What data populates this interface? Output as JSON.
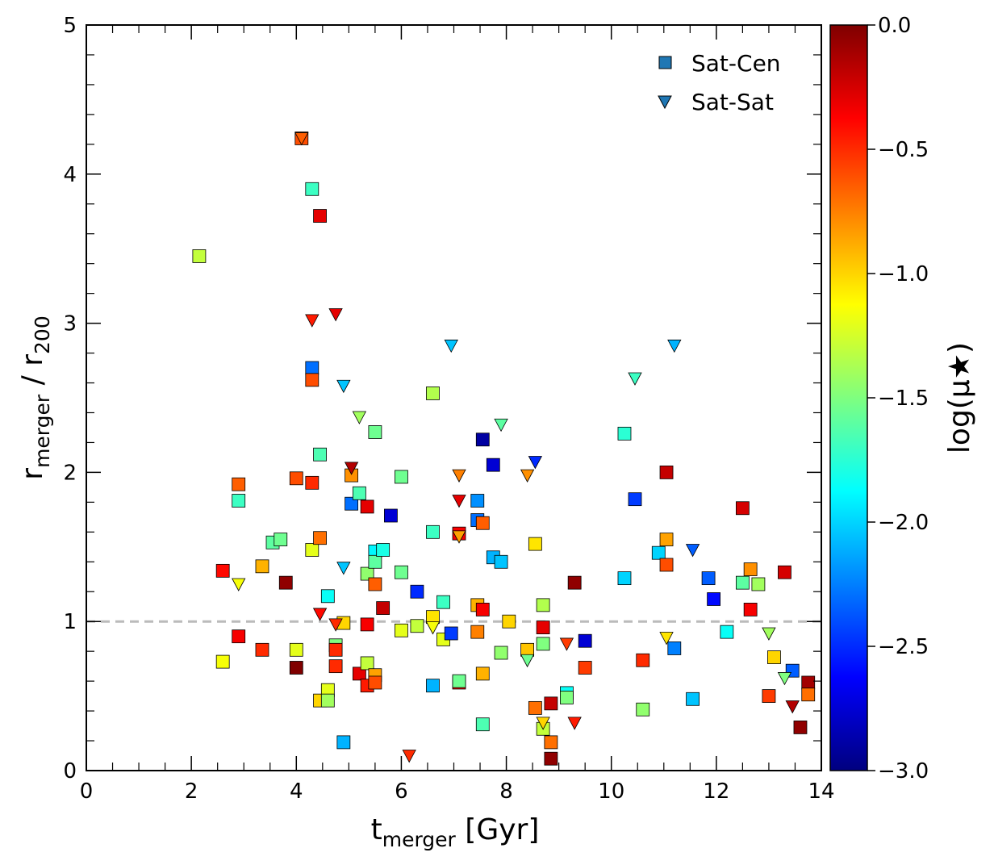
{
  "chart_data": {
    "type": "scatter",
    "title": "",
    "xlabel": {
      "main": "t",
      "sub": "merger",
      "unit": " [Gyr]"
    },
    "ylabel": {
      "main": "r",
      "sub": "merger",
      "mid": " / r",
      "sub2": "200"
    },
    "xlim": [
      0,
      14
    ],
    "ylim": [
      0,
      5
    ],
    "x_ticks": [
      0,
      2,
      4,
      6,
      8,
      10,
      12,
      14
    ],
    "x_tick_labels": [
      "0",
      "2",
      "4",
      "6",
      "8",
      "10",
      "12",
      "14"
    ],
    "y_ticks": [
      0,
      1,
      2,
      3,
      4,
      5
    ],
    "y_tick_labels": [
      "0",
      "1",
      "2",
      "3",
      "4",
      "5"
    ],
    "reference_line": {
      "y": 1.0,
      "style": "dashed",
      "color": "#bbbbbb"
    },
    "colorbar": {
      "label": "log(μ★)",
      "colormap": "jet",
      "range": [
        -3.0,
        0.0
      ],
      "ticks": [
        0.0,
        -0.5,
        -1.0,
        -1.5,
        -2.0,
        -2.5,
        -3.0
      ],
      "tick_labels": [
        "0.0",
        "−0.5",
        "−1.0",
        "−1.5",
        "−2.0",
        "−2.5",
        "−3.0"
      ]
    },
    "legend": {
      "position": "top-right",
      "entries": [
        {
          "label": "Sat-Cen",
          "marker": "square",
          "color": "#1f77b4"
        },
        {
          "label": "Sat-Sat",
          "marker": "triangle-down",
          "color": "#1f77b4"
        }
      ]
    },
    "series": [
      {
        "name": "Sat-Cen",
        "marker": "square",
        "points": [
          [
            2.15,
            3.45,
            -1.3
          ],
          [
            2.6,
            0.73,
            -1.15
          ],
          [
            2.6,
            1.34,
            -0.4
          ],
          [
            2.9,
            1.92,
            -0.65
          ],
          [
            2.9,
            1.81,
            -1.7
          ],
          [
            2.9,
            0.9,
            -0.35
          ],
          [
            3.35,
            1.37,
            -0.9
          ],
          [
            3.35,
            0.81,
            -0.5
          ],
          [
            3.55,
            1.53,
            -1.6
          ],
          [
            3.7,
            1.55,
            -1.55
          ],
          [
            3.8,
            1.26,
            -0.05
          ],
          [
            4.0,
            0.69,
            0.0
          ],
          [
            4.0,
            0.81,
            -1.2
          ],
          [
            4.0,
            1.96,
            -0.6
          ],
          [
            4.1,
            4.24,
            -0.6
          ],
          [
            4.3,
            3.9,
            -1.7
          ],
          [
            4.3,
            2.7,
            -2.3
          ],
          [
            4.3,
            2.62,
            -0.6
          ],
          [
            4.3,
            1.93,
            -0.5
          ],
          [
            4.3,
            1.48,
            -1.2
          ],
          [
            4.45,
            3.72,
            -0.3
          ],
          [
            4.45,
            2.12,
            -1.65
          ],
          [
            4.45,
            1.56,
            -0.7
          ],
          [
            4.45,
            0.47,
            -1.0
          ],
          [
            4.6,
            1.17,
            -1.85
          ],
          [
            4.6,
            0.54,
            -1.2
          ],
          [
            4.6,
            0.47,
            -1.4
          ],
          [
            4.75,
            0.84,
            -1.5
          ],
          [
            4.75,
            0.81,
            -0.5
          ],
          [
            4.75,
            0.7,
            -0.5
          ],
          [
            4.9,
            0.99,
            -1.0
          ],
          [
            4.9,
            0.19,
            -2.1
          ],
          [
            5.05,
            1.98,
            -0.8
          ],
          [
            5.05,
            1.79,
            -2.3
          ],
          [
            5.2,
            1.86,
            -1.65
          ],
          [
            5.2,
            0.65,
            -0.3
          ],
          [
            5.35,
            1.77,
            -0.3
          ],
          [
            5.35,
            1.32,
            -1.45
          ],
          [
            5.35,
            0.98,
            -0.35
          ],
          [
            5.35,
            0.72,
            -1.3
          ],
          [
            5.35,
            0.57,
            -0.45
          ],
          [
            5.5,
            2.27,
            -1.55
          ],
          [
            5.5,
            1.47,
            -1.9
          ],
          [
            5.5,
            1.4,
            -1.6
          ],
          [
            5.5,
            1.25,
            -0.65
          ],
          [
            5.5,
            0.64,
            -0.85
          ],
          [
            5.5,
            0.59,
            -0.6
          ],
          [
            5.65,
            1.48,
            -1.8
          ],
          [
            5.65,
            1.09,
            -0.2
          ],
          [
            5.8,
            1.71,
            -2.75
          ],
          [
            6.0,
            1.97,
            -1.55
          ],
          [
            6.0,
            1.33,
            -1.55
          ],
          [
            6.0,
            0.94,
            -1.2
          ],
          [
            6.3,
            1.2,
            -2.5
          ],
          [
            6.3,
            0.97,
            -1.3
          ],
          [
            6.6,
            2.53,
            -1.35
          ],
          [
            6.6,
            1.6,
            -1.7
          ],
          [
            6.6,
            1.03,
            -1.05
          ],
          [
            6.6,
            0.57,
            -2.1
          ],
          [
            6.8,
            1.13,
            -1.7
          ],
          [
            6.8,
            0.88,
            -1.2
          ],
          [
            6.95,
            0.92,
            -2.45
          ],
          [
            7.1,
            1.59,
            -0.35
          ],
          [
            7.1,
            0.59,
            -0.35
          ],
          [
            7.1,
            0.6,
            -1.55
          ],
          [
            7.45,
            1.81,
            -2.2
          ],
          [
            7.45,
            1.68,
            -2.3
          ],
          [
            7.45,
            1.11,
            -0.9
          ],
          [
            7.45,
            0.93,
            -0.75
          ],
          [
            7.55,
            2.22,
            -2.9
          ],
          [
            7.55,
            1.66,
            -0.65
          ],
          [
            7.55,
            1.08,
            -0.35
          ],
          [
            7.55,
            0.65,
            -0.9
          ],
          [
            7.55,
            0.31,
            -1.65
          ],
          [
            7.75,
            2.05,
            -2.75
          ],
          [
            7.75,
            1.43,
            -2.1
          ],
          [
            7.9,
            1.4,
            -2.05
          ],
          [
            7.9,
            0.79,
            -1.45
          ],
          [
            8.05,
            1.0,
            -1.0
          ],
          [
            8.4,
            0.81,
            -0.95
          ],
          [
            8.55,
            1.52,
            -1.05
          ],
          [
            8.55,
            0.42,
            -0.7
          ],
          [
            8.7,
            1.11,
            -1.35
          ],
          [
            8.7,
            0.96,
            -0.3
          ],
          [
            8.7,
            0.85,
            -1.5
          ],
          [
            8.7,
            0.28,
            -1.3
          ],
          [
            8.85,
            0.45,
            -0.2
          ],
          [
            8.85,
            0.19,
            -0.7
          ],
          [
            8.85,
            0.08,
            -0.05
          ],
          [
            9.15,
            0.52,
            -1.85
          ],
          [
            9.15,
            0.49,
            -1.5
          ],
          [
            9.3,
            1.26,
            -0.05
          ],
          [
            9.5,
            0.87,
            -2.75
          ],
          [
            9.5,
            0.69,
            -0.55
          ],
          [
            10.25,
            2.26,
            -1.75
          ],
          [
            10.25,
            1.29,
            -2.0
          ],
          [
            10.45,
            1.82,
            -2.45
          ],
          [
            10.6,
            0.74,
            -0.5
          ],
          [
            10.6,
            0.41,
            -1.45
          ],
          [
            10.9,
            1.46,
            -2.0
          ],
          [
            11.05,
            2.0,
            -0.2
          ],
          [
            11.05,
            1.55,
            -0.85
          ],
          [
            11.05,
            1.38,
            -0.6
          ],
          [
            11.2,
            0.82,
            -2.25
          ],
          [
            11.55,
            0.48,
            -2.05
          ],
          [
            11.85,
            1.29,
            -2.35
          ],
          [
            11.95,
            1.15,
            -2.6
          ],
          [
            12.2,
            0.93,
            -1.85
          ],
          [
            12.5,
            1.76,
            -0.25
          ],
          [
            12.5,
            1.26,
            -1.6
          ],
          [
            12.65,
            1.35,
            -0.8
          ],
          [
            12.65,
            1.08,
            -0.35
          ],
          [
            12.8,
            1.25,
            -1.4
          ],
          [
            13.0,
            0.5,
            -0.55
          ],
          [
            13.1,
            0.76,
            -1.0
          ],
          [
            13.3,
            1.33,
            -0.25
          ],
          [
            13.45,
            0.67,
            -2.35
          ],
          [
            13.6,
            0.29,
            -0.05
          ],
          [
            13.75,
            0.59,
            -0.1
          ],
          [
            13.75,
            0.51,
            -0.7
          ]
        ]
      },
      {
        "name": "Sat-Sat",
        "marker": "triangle-down",
        "points": [
          [
            2.9,
            1.25,
            -1.15
          ],
          [
            4.1,
            4.24,
            -0.65
          ],
          [
            4.3,
            3.02,
            -0.45
          ],
          [
            4.45,
            1.05,
            -0.4
          ],
          [
            4.75,
            3.06,
            -0.3
          ],
          [
            4.75,
            0.98,
            -0.5
          ],
          [
            4.9,
            2.58,
            -2.05
          ],
          [
            4.9,
            1.36,
            -2.05
          ],
          [
            5.05,
            2.03,
            -0.15
          ],
          [
            5.2,
            2.37,
            -1.4
          ],
          [
            6.15,
            0.1,
            -0.5
          ],
          [
            6.6,
            0.96,
            -1.15
          ],
          [
            6.95,
            2.85,
            -2.05
          ],
          [
            7.1,
            1.98,
            -0.75
          ],
          [
            7.1,
            1.81,
            -0.3
          ],
          [
            7.1,
            1.57,
            -0.85
          ],
          [
            7.9,
            2.32,
            -1.6
          ],
          [
            8.4,
            1.98,
            -0.8
          ],
          [
            8.4,
            0.74,
            -1.55
          ],
          [
            8.55,
            2.07,
            -2.5
          ],
          [
            8.7,
            0.32,
            -1.0
          ],
          [
            9.15,
            0.85,
            -0.55
          ],
          [
            9.3,
            0.32,
            -0.45
          ],
          [
            10.45,
            2.63,
            -1.7
          ],
          [
            11.05,
            0.89,
            -1.05
          ],
          [
            11.2,
            2.85,
            -2.1
          ],
          [
            11.55,
            1.48,
            -2.35
          ],
          [
            13.0,
            0.92,
            -1.4
          ],
          [
            13.3,
            0.62,
            -1.5
          ],
          [
            13.45,
            0.43,
            -0.15
          ]
        ]
      }
    ]
  }
}
